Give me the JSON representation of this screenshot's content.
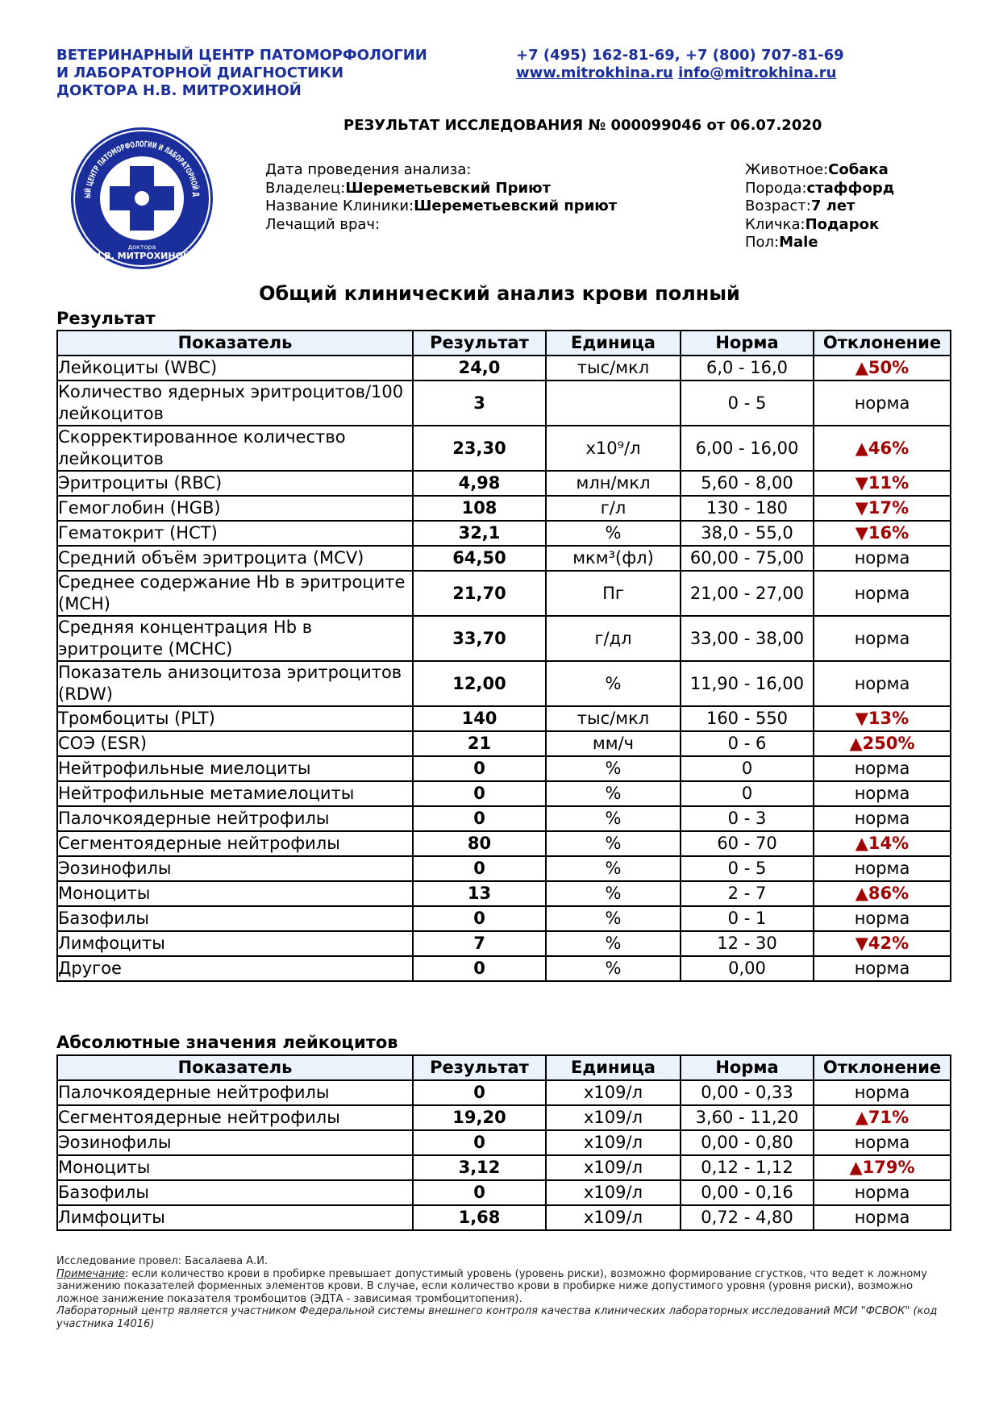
{
  "header": {
    "org_lines": [
      "ВЕТЕРИНАРНЫЙ ЦЕНТР ПАТОМОРФОЛОГИИ",
      "И ЛАБОРАТОРНОЙ ДИАГНОСТИКИ",
      "ДОКТОРА Н.В. МИТРОХИНОЙ"
    ],
    "phones": "+7 (495) 162-81-69, +7 (800) 707-81-69",
    "website": "www.mitrokhina.ru",
    "email": "info@mitrokhina.ru"
  },
  "report_title": "РЕЗУЛЬТАТ ИССЛЕДОВАНИЯ № 000099046 от 06.07.2020",
  "logo": {
    "ring_text": "ВЕТЕРИНАРНЫЙ ЦЕНТР ПАТОМОРФОЛОГИИ И ЛАБОРАТОРНОЙ ДИАГНОСТИКИ",
    "doctor": "доктора",
    "name": "Н.В. МИТРОХИНОЙ"
  },
  "info": {
    "left": [
      {
        "label": "Дата проведения анализа:"
      },
      {
        "label": "Владелец:",
        "value": "Шереметьевский Приют"
      },
      {
        "label": "Название Клиники:",
        "value": "Шереметьевский приют"
      },
      {
        "label": "Лечащий врач:"
      }
    ],
    "right": [
      {
        "label": "Животное:",
        "value": "Собака"
      },
      {
        "label": "Порода:",
        "value": "стаффорд"
      },
      {
        "label": "Возраст:",
        "value": "7 лет"
      },
      {
        "label": "Кличка:",
        "value": "Подарок"
      },
      {
        "label": "Пол:",
        "value": "Male"
      }
    ]
  },
  "section_title": "Общий клинический анализ крови полный",
  "result_label": "Результат",
  "table1": {
    "columns": [
      "Показатель",
      "Результат",
      "Единица",
      "Норма",
      "Отклонение"
    ],
    "rows": [
      [
        "Лейкоциты (WBC)",
        "24,0",
        "тыс/мкл",
        "6,0 - 16,0",
        "▲50%"
      ],
      [
        "Количество ядерных эритроцитов/100 лейкоцитов",
        "3",
        null,
        "0 - 5",
        "норма"
      ],
      [
        "Скорректированное количество лейкоцитов",
        "23,30",
        "x10⁹/л",
        "6,00 - 16,00",
        "▲46%"
      ],
      [
        "Эритроциты (RBC)",
        "4,98",
        "млн/мкл",
        "5,60 - 8,00",
        "▼11%"
      ],
      [
        "Гемоглобин (HGB)",
        "108",
        "г/л",
        "130 - 180",
        "▼17%"
      ],
      [
        "Гематокрит (HCT)",
        "32,1",
        "%",
        "38,0 - 55,0",
        "▼16%"
      ],
      [
        "Средний объём эритроцита (MCV)",
        "64,50",
        "мкм³(фл)",
        "60,00 - 75,00",
        "норма"
      ],
      [
        "Среднее содержание Hb в эритроците (MCH)",
        "21,70",
        "Пг",
        "21,00 - 27,00",
        "норма"
      ],
      [
        "Средняя концентрация Hb в эритроците (MCHC)",
        "33,70",
        "г/дл",
        "33,00 - 38,00",
        "норма"
      ],
      [
        "Показатель анизоцитоза эритроцитов (RDW)",
        "12,00",
        "%",
        "11,90 - 16,00",
        "норма"
      ],
      [
        "Тромбоциты (PLT)",
        "140",
        "тыс/мкл",
        "160 - 550",
        "▼13%"
      ],
      [
        "СОЭ (ESR)",
        "21",
        "мм/ч",
        "0 - 6",
        "▲250%"
      ],
      [
        "Нейтрофильные миелоциты",
        "0",
        "%",
        "0",
        "норма"
      ],
      [
        "Нейтрофильные метамиелоциты",
        "0",
        "%",
        "0",
        "норма"
      ],
      [
        "Палочкоядерные нейтрофилы",
        "0",
        "%",
        "0 - 3",
        "норма"
      ],
      [
        "Сегментоядерные нейтрофилы",
        "80",
        "%",
        "60 - 70",
        "▲14%"
      ],
      [
        "Эозинофилы",
        "0",
        "%",
        "0 - 5",
        "норма"
      ],
      [
        "Моноциты",
        "13",
        "%",
        "2 - 7",
        "▲86%"
      ],
      [
        "Базофилы",
        "0",
        "%",
        "0 - 1",
        "норма"
      ],
      [
        "Лимфоциты",
        "7",
        "%",
        "12 - 30",
        "▼42%"
      ],
      [
        "Другое",
        "0",
        "%",
        "0,00",
        "норма"
      ]
    ]
  },
  "table2_title": "Абсолютные значения лейкоцитов",
  "table2": {
    "columns": [
      "Показатель",
      "Результат",
      "Единица",
      "Норма",
      "Отклонение"
    ],
    "rows": [
      [
        "Палочкоядерные нейтрофилы",
        "0",
        "x109/л",
        "0,00 - 0,33",
        "норма"
      ],
      [
        "Сегментоядерные нейтрофилы",
        "19,20",
        "x109/л",
        "3,60 - 11,20",
        "▲71%"
      ],
      [
        "Эозинофилы",
        "0",
        "x109/л",
        "0,00 - 0,80",
        "норма"
      ],
      [
        "Моноциты",
        "3,12",
        "x109/л",
        "0,12 - 1,12",
        "▲179%"
      ],
      [
        "Базофилы",
        "0",
        "x109/л",
        "0,00 - 0,16",
        "норма"
      ],
      [
        "Лимфоциты",
        "1,68",
        "x109/л",
        "0,72 - 4,80",
        "норма"
      ]
    ]
  },
  "footer": {
    "performed": "Исследование провел: Басалаева А.И.",
    "note_label": "Примечание",
    "note_text": ": если количество крови в пробирке превышает допустимый уровень (уровень риски), возможно формирование сгустков, что ведет к ложному занижению показателей форменных элементов крови. В случае, если количество крови в пробирке ниже допустимого уровня (уровня риски), возможно ложное занижение показателя тромбоцитов (ЭДТА - зависимая тромбоцитопения).",
    "membership": "Лабораторный центр является участником Федеральной системы внешнего контроля качества клинических лабораторных исследований МСИ \"ФСВОК\" (код участника 14016)"
  }
}
